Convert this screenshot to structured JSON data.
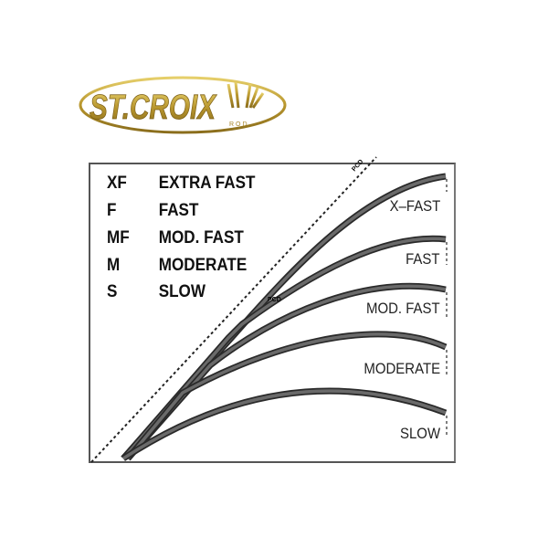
{
  "logo": {
    "brand": "ST.CROIX",
    "sub": "ROD",
    "color": "#b8962e"
  },
  "legend": [
    {
      "abbr": "XF",
      "label": "EXTRA FAST"
    },
    {
      "abbr": "F",
      "label": "FAST"
    },
    {
      "abbr": "MF",
      "label": "MOD. FAST"
    },
    {
      "abbr": "M",
      "label": "MODERATE"
    },
    {
      "abbr": "S",
      "label": "SLOW"
    }
  ],
  "pcd_label": "PCD",
  "rods": [
    {
      "label": "X–FAST"
    },
    {
      "label": "FAST"
    },
    {
      "label": "MOD. FAST"
    },
    {
      "label": "MODERATE"
    },
    {
      "label": "SLOW"
    }
  ],
  "colors": {
    "rod_fill": "#6a6a6a",
    "rod_outline": "#2a2a2a",
    "frame": "#555555"
  }
}
